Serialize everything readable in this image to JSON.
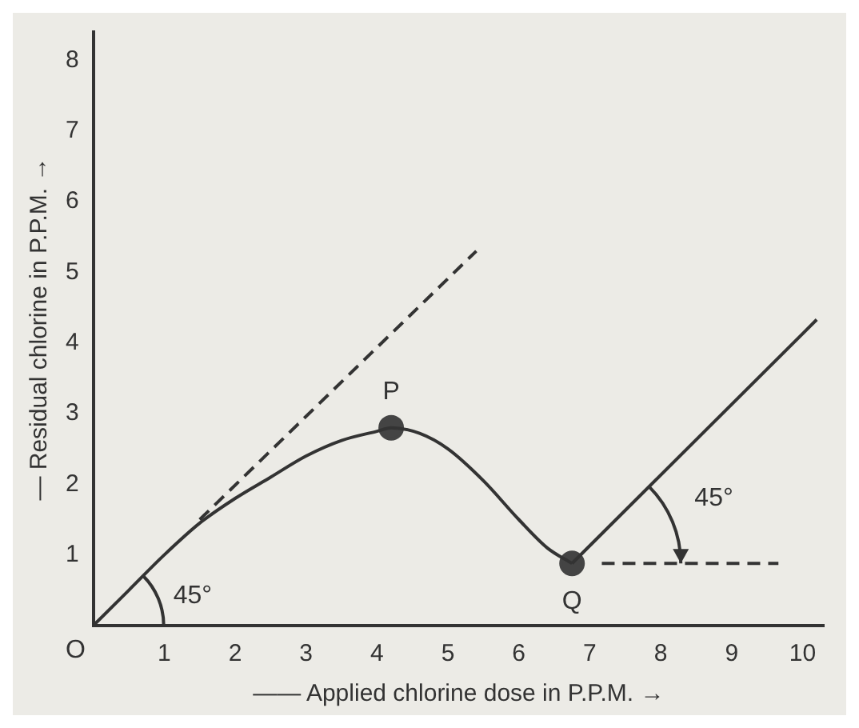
{
  "chart_data": {
    "type": "line",
    "xlabel": "—— Applied chlorine dose in P.P.M. →",
    "ylabel": "— Residual chlorine in P.P.M. →",
    "series": [
      {
        "color": "#333333",
        "line_style": "solid",
        "marker": "none",
        "x": [
          0,
          0.5,
          1,
          1.5,
          2,
          2.5,
          3,
          3.5,
          4,
          4.2,
          4.6,
          5,
          5.5,
          6,
          6.4,
          6.75
        ],
        "values": [
          0,
          0.5,
          1,
          1.45,
          1.8,
          2.1,
          2.4,
          2.62,
          2.75,
          2.8,
          2.72,
          2.5,
          2.05,
          1.5,
          1.1,
          0.88
        ]
      },
      {
        "color": "#333333",
        "line_style": "solid",
        "marker": "none",
        "x": [
          6.75,
          10.2
        ],
        "values": [
          0.88,
          4.33
        ]
      },
      {
        "color": "#333333",
        "line_style": "dashed",
        "marker": "none",
        "x": [
          1.5,
          5.4
        ],
        "values": [
          1.5,
          5.3
        ]
      },
      {
        "color": "#333333",
        "line_style": "dashed",
        "marker": "none",
        "x": [
          7.17,
          9.66
        ],
        "values": [
          0.88,
          0.88
        ]
      },
      {
        "type": "scatter",
        "color": "#444444",
        "marker": "circle",
        "x": [
          4.2,
          6.75
        ],
        "values": [
          2.8,
          0.88
        ]
      }
    ],
    "xlim": [
      0,
      10.3
    ],
    "ylim": [
      0,
      8.4
    ],
    "xticks": [
      1,
      2,
      3,
      4,
      5,
      6,
      7,
      8,
      9,
      10
    ],
    "yticks": [
      1,
      2,
      3,
      4,
      5,
      6,
      7,
      8
    ],
    "grid": false,
    "legend": false,
    "annotations": [
      {
        "text": "P",
        "x": 4.2,
        "y": 2.8
      },
      {
        "text": "Q",
        "x": 6.75,
        "y": 0.88
      },
      "O",
      "45°",
      "45°"
    ]
  }
}
